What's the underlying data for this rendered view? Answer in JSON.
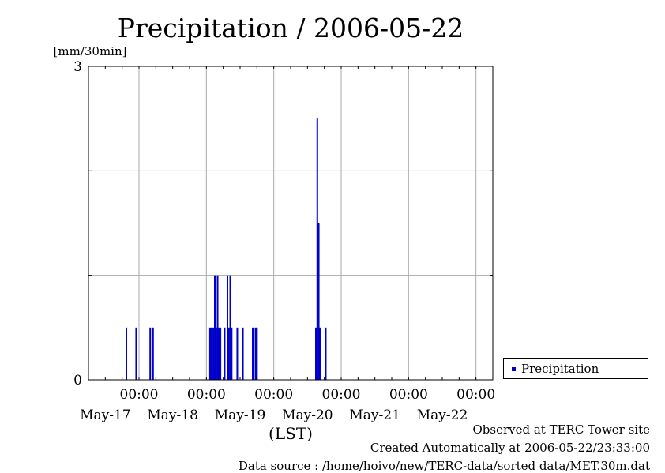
{
  "chart_data": {
    "type": "bar",
    "title": "Precipitation / 2006-05-22",
    "ylabel": "[mm/30min]",
    "xlabel": "(LST)",
    "ylim": [
      0,
      3
    ],
    "y_ticks_labeled": [
      "0",
      "3"
    ],
    "y_gridlines": [
      1,
      2
    ],
    "xlim": [
      "2006-05-16 06:00",
      "2006-05-22 06:00"
    ],
    "x_ticks": [
      {
        "time": "2006-05-17 00:00",
        "time_label": "00:00",
        "date_label": "May-17"
      },
      {
        "time": "2006-05-18 00:00",
        "time_label": "00:00",
        "date_label": "May-18"
      },
      {
        "time": "2006-05-19 00:00",
        "time_label": "00:00",
        "date_label": "May-19"
      },
      {
        "time": "2006-05-20 00:00",
        "time_label": "00:00",
        "date_label": "May-20"
      },
      {
        "time": "2006-05-21 00:00",
        "time_label": "00:00",
        "date_label": "May-21"
      },
      {
        "time": "2006-05-22 00:00",
        "time_label": "00:00",
        "date_label": "May-22"
      }
    ],
    "grid": true,
    "legend_position": "right",
    "series": [
      {
        "name": "Precipitation",
        "color": "#0000cc",
        "points": [
          {
            "t": "2006-05-16 19:30",
            "v": 0.5
          },
          {
            "t": "2006-05-16 23:00",
            "v": 0.5
          },
          {
            "t": "2006-05-17 04:00",
            "v": 0.5
          },
          {
            "t": "2006-05-17 05:00",
            "v": 0.5
          },
          {
            "t": "2006-05-18 01:00",
            "v": 0.5
          },
          {
            "t": "2006-05-18 01:30",
            "v": 0.5
          },
          {
            "t": "2006-05-18 02:00",
            "v": 0.5
          },
          {
            "t": "2006-05-18 02:30",
            "v": 0.5
          },
          {
            "t": "2006-05-18 03:00",
            "v": 1.0
          },
          {
            "t": "2006-05-18 03:30",
            "v": 0.5
          },
          {
            "t": "2006-05-18 04:00",
            "v": 1.0
          },
          {
            "t": "2006-05-18 04:30",
            "v": 0.5
          },
          {
            "t": "2006-05-18 05:00",
            "v": 0.5
          },
          {
            "t": "2006-05-18 06:30",
            "v": 0.5
          },
          {
            "t": "2006-05-18 07:30",
            "v": 1.0
          },
          {
            "t": "2006-05-18 08:00",
            "v": 0.5
          },
          {
            "t": "2006-05-18 08:30",
            "v": 1.0
          },
          {
            "t": "2006-05-18 09:00",
            "v": 0.5
          },
          {
            "t": "2006-05-18 11:00",
            "v": 0.5
          },
          {
            "t": "2006-05-18 13:00",
            "v": 0.5
          },
          {
            "t": "2006-05-18 16:30",
            "v": 0.5
          },
          {
            "t": "2006-05-18 17:30",
            "v": 0.5
          },
          {
            "t": "2006-05-18 18:00",
            "v": 0.5
          },
          {
            "t": "2006-05-19 15:00",
            "v": 0.5
          },
          {
            "t": "2006-05-19 15:30",
            "v": 2.5
          },
          {
            "t": "2006-05-19 16:00",
            "v": 1.5
          },
          {
            "t": "2006-05-19 16:30",
            "v": 0.5
          },
          {
            "t": "2006-05-19 18:30",
            "v": 0.5
          }
        ]
      }
    ]
  },
  "footer": {
    "observed": "Observed at TERC Tower site",
    "created": "Created Automatically at 2006-05-22/23:33:00",
    "source": "Data source : /home/hoivo/new/TERC-data/sorted  data/MET.30m.dat"
  }
}
